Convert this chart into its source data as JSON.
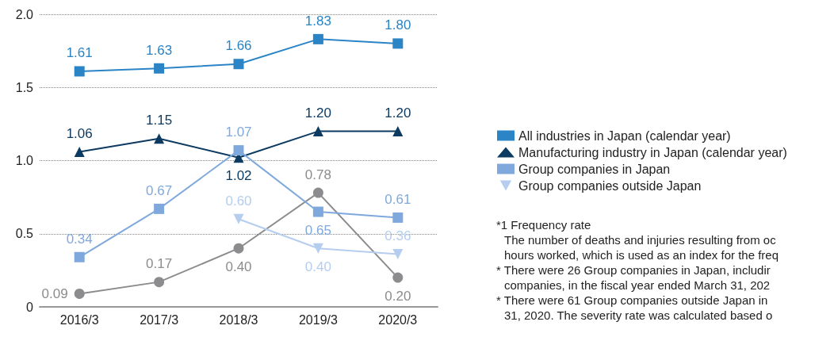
{
  "chart_data": {
    "type": "line",
    "categories": [
      "2016/3",
      "2017/3",
      "2018/3",
      "2019/3",
      "2020/3"
    ],
    "ylim": [
      0,
      2.0
    ],
    "yticks": [
      0,
      {
        "value": 0.5,
        "label": "0.5"
      },
      {
        "value": 1,
        "label": "1.0"
      },
      {
        "value": 1.5,
        "label": "1.5"
      },
      {
        "value": 2,
        "label": "2.0"
      }
    ],
    "grid": "y",
    "legend": "right",
    "series": [
      {
        "name": "All industries in Japan (calendar year)",
        "color": "#2a84c6",
        "marker": "square",
        "values": [
          1.61,
          1.63,
          1.66,
          1.83,
          1.8
        ],
        "value_labels": [
          "1.61",
          "1.63",
          "1.66",
          "1.83",
          "1.80"
        ]
      },
      {
        "name": "Manufacturing industry in Japan (calendar year)",
        "color": "#0d3a60",
        "marker": "triangle",
        "values": [
          1.06,
          1.15,
          1.02,
          1.2,
          1.2
        ],
        "value_labels": [
          "1.06",
          "1.15",
          "1.02",
          "1.20",
          "1.20"
        ]
      },
      {
        "color": "#8c8c8e",
        "marker": "circle",
        "values": [
          0.09,
          0.17,
          0.4,
          0.78,
          0.2
        ],
        "value_labels": [
          "0.09",
          "0.17",
          "0.40",
          "0.78",
          "0.20"
        ]
      },
      {
        "name": "Group companies in Japan",
        "color": "#7fa9dd",
        "marker": "square",
        "values": [
          0.34,
          0.67,
          1.07,
          0.65,
          0.61
        ],
        "value_labels": [
          "0.34",
          "0.67",
          "1.07",
          "0.65",
          "0.61"
        ]
      },
      {
        "name": "Group companies outside Japan",
        "color": "#b5cdee",
        "marker": "triangle-down",
        "values": [
          null,
          null,
          0.6,
          0.4,
          0.36
        ],
        "value_labels": [
          null,
          null,
          "0.60",
          "0.40",
          "0.36"
        ]
      }
    ],
    "annotations": [
      "*1 Frequency rate",
      "The number of deaths and injuries resulting from oc",
      "hours worked, which is used as an index for the freq",
      "* There were 26 Group companies in Japan, includir",
      "companies, in the fiscal year ended March 31, 202",
      "* There were 61 Group companies outside Japan in",
      "31, 2020. The severity rate was calculated based o"
    ]
  }
}
